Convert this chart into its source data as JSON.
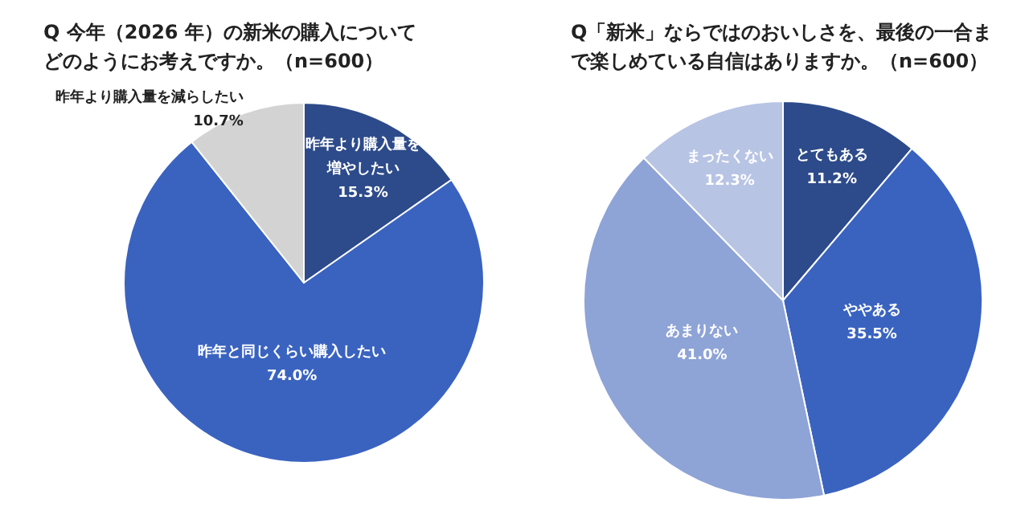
{
  "chart_data": [
    {
      "type": "pie",
      "title": "Q 今年（2026 年）の新米の購入についてどのようにお考えですか。（n=600）",
      "categories": [
        "昨年より購入量を増やしたい",
        "昨年と同じくらい購入したい",
        "昨年より購入量を減らしたい"
      ],
      "values": [
        15.3,
        74.0,
        10.7
      ],
      "value_labels": [
        "15.3%",
        "74.0%",
        "10.7%"
      ],
      "colors": [
        "#2d4b8a",
        "#3a63c0",
        "#d3d3d3"
      ],
      "legend": false
    },
    {
      "type": "pie",
      "title": "Q「新米」ならではのおいしさを、最後の一合まで楽しめている自信はありますか。（n=600）",
      "categories": [
        "とてもある",
        "ややある",
        "あまりない",
        "まったくない"
      ],
      "values": [
        11.2,
        35.5,
        41.0,
        12.3
      ],
      "value_labels": [
        "11.2%",
        "35.5%",
        "41.0%",
        "12.3%"
      ],
      "colors": [
        "#2d4b8a",
        "#3a63c0",
        "#8ea3d6",
        "#b8c4e4"
      ],
      "legend": false
    }
  ]
}
